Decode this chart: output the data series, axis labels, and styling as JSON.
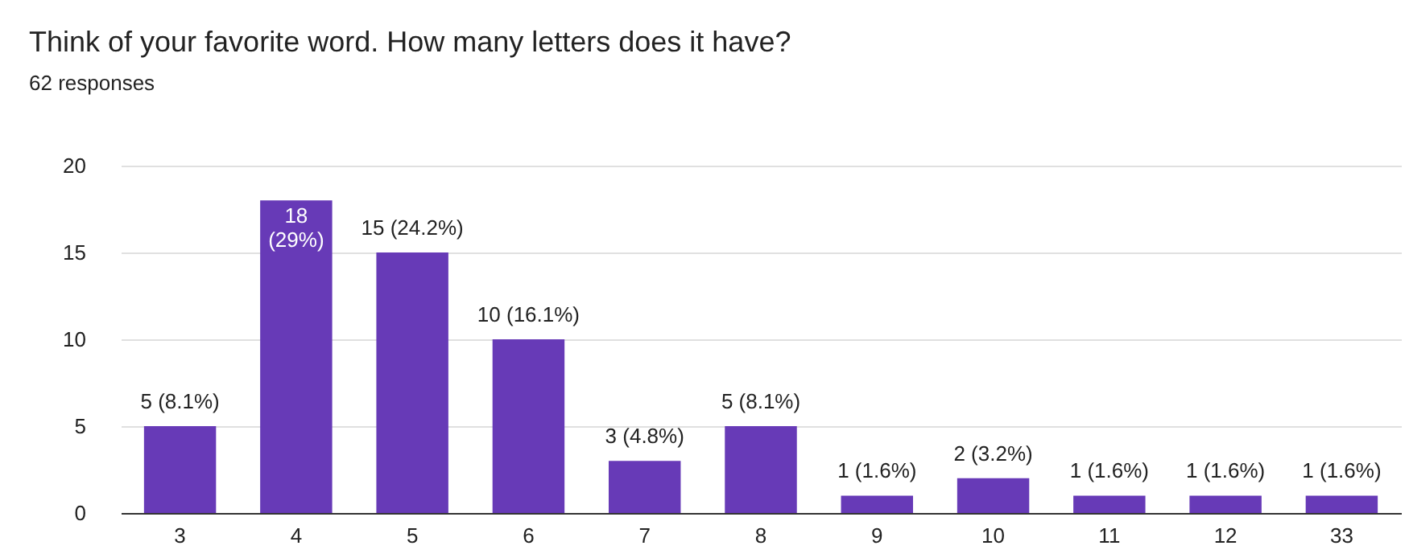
{
  "chart_data": {
    "type": "bar",
    "title": "Think of your favorite word. How many letters does it have?",
    "subtitle": "62 responses",
    "categories": [
      "3",
      "4",
      "5",
      "6",
      "7",
      "8",
      "9",
      "10",
      "11",
      "12",
      "33"
    ],
    "values": [
      5,
      18,
      15,
      10,
      3,
      5,
      1,
      2,
      1,
      1,
      1
    ],
    "value_labels": [
      "5 (8.1%)",
      "18 (29%)",
      "15 (24.2%)",
      "10 (16.1%)",
      "3 (4.8%)",
      "5 (8.1%)",
      "1 (1.6%)",
      "2 (3.2%)",
      "1 (1.6%)",
      "1 (1.6%)",
      "1 (1.6%)"
    ],
    "color": "#673ab7",
    "ylim": [
      0,
      20
    ],
    "yticks": [
      0,
      5,
      10,
      15,
      20
    ],
    "grid": "y"
  }
}
